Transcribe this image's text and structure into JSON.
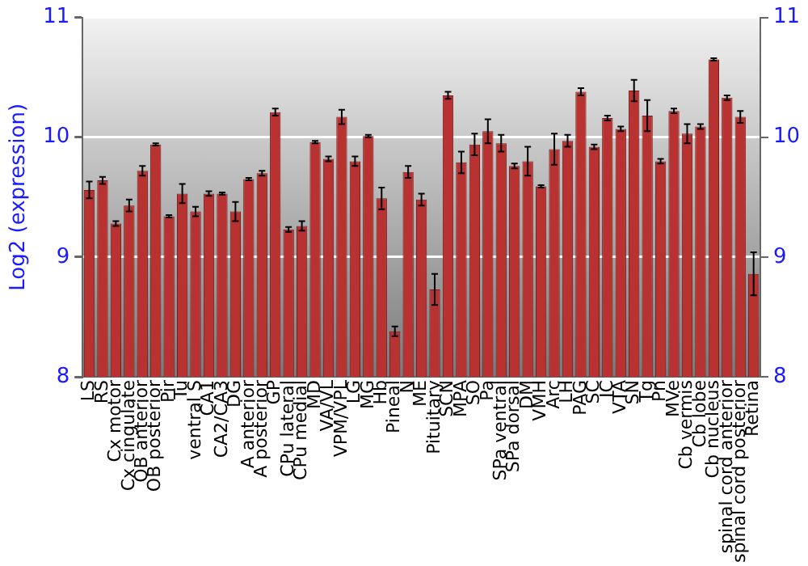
{
  "chart_data": {
    "type": "bar",
    "ylabel": "Log2 (expression)",
    "categories": [
      "LS",
      "RS",
      "Cx motor",
      "Cx cingulate",
      "OB anterior",
      "OB posterior",
      "Pir",
      "Tu",
      "ventral S",
      "CA1",
      "CA2/CA3",
      "DG",
      "A anterior",
      "A posterior",
      "GP",
      "CPu lateral",
      "CPu medial",
      "MD",
      "VA/VL",
      "VPM/VPL",
      "LG",
      "MG",
      "Hb",
      "Pineal",
      "N",
      "ME",
      "Pituitary",
      "SCN",
      "MPA",
      "SO",
      "Pa",
      "SPa ventral",
      "SPa dorsal",
      "DM",
      "VMH",
      "Arc",
      "LH",
      "PAG",
      "SC",
      "IC",
      "VTA",
      "SN",
      "Tg",
      "Pn",
      "MVe",
      "Cb vermis",
      "Cb lobe",
      "Cb nucleus",
      "spinal cord anterior",
      "spinal cord posterior",
      "Retina"
    ],
    "values": [
      9.56,
      9.64,
      9.28,
      9.43,
      9.72,
      9.94,
      9.34,
      9.53,
      9.38,
      9.53,
      9.53,
      9.38,
      9.65,
      9.7,
      10.21,
      9.23,
      9.26,
      9.96,
      9.82,
      10.17,
      9.8,
      10.01,
      9.49,
      8.38,
      9.71,
      9.48,
      8.73,
      10.35,
      9.79,
      9.94,
      10.05,
      9.95,
      9.76,
      9.8,
      9.59,
      9.9,
      9.97,
      10.38,
      9.92,
      10.16,
      10.07,
      10.39,
      10.18,
      9.8,
      10.22,
      10.03,
      10.09,
      10.65,
      10.33,
      10.17,
      8.86
    ],
    "errors": [
      0.07,
      0.03,
      0.02,
      0.05,
      0.04,
      0.01,
      0.01,
      0.08,
      0.04,
      0.02,
      0.01,
      0.08,
      0.01,
      0.02,
      0.03,
      0.02,
      0.04,
      0.01,
      0.02,
      0.06,
      0.04,
      0.01,
      0.09,
      0.04,
      0.05,
      0.05,
      0.13,
      0.03,
      0.09,
      0.09,
      0.1,
      0.07,
      0.02,
      0.12,
      0.01,
      0.13,
      0.05,
      0.03,
      0.02,
      0.02,
      0.02,
      0.09,
      0.13,
      0.02,
      0.02,
      0.08,
      0.02,
      0.01,
      0.02,
      0.05,
      0.18
    ],
    "color": "#b83232",
    "ylim": [
      8,
      11
    ],
    "yticks": [
      8,
      9,
      10,
      11
    ],
    "y2lim": [
      8,
      11
    ],
    "y2ticks": [
      8,
      9,
      10,
      11
    ],
    "grid": "y",
    "legend": false
  }
}
